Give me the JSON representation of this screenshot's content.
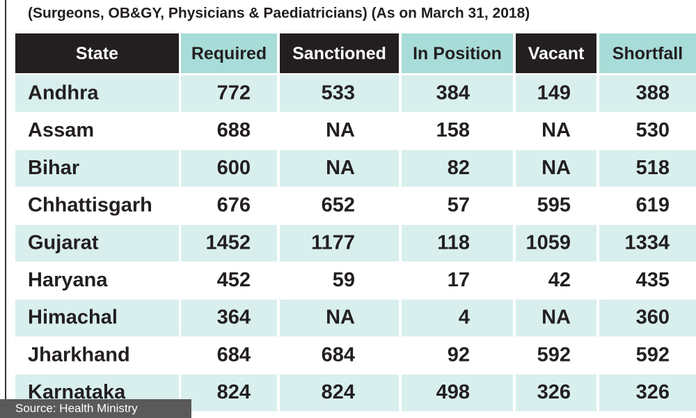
{
  "subtitle": "(Surgeons, OB&GY, Physicians & Paediatricians) (As on March 31, 2018)",
  "table": {
    "header": [
      "State",
      "Required",
      "Sanctioned",
      "In Position",
      "Vacant",
      "Shortfall"
    ],
    "rows": [
      [
        "Andhra",
        772,
        533,
        384,
        149,
        388
      ],
      [
        "Assam",
        688,
        "NA",
        158,
        "NA",
        530
      ],
      [
        "Bihar",
        600,
        "NA",
        82,
        "NA",
        518
      ],
      [
        "Chhattisgarh",
        676,
        652,
        57,
        595,
        619
      ],
      [
        "Gujarat",
        1452,
        1177,
        118,
        1059,
        1334
      ],
      [
        "Haryana",
        452,
        59,
        17,
        42,
        435
      ],
      [
        "Himachal",
        364,
        "NA",
        4,
        "NA",
        360
      ],
      [
        "Jharkhand",
        684,
        684,
        92,
        592,
        592
      ],
      [
        "Karnataka",
        824,
        824,
        498,
        326,
        326
      ]
    ]
  },
  "source": "Source: Health Ministry"
}
